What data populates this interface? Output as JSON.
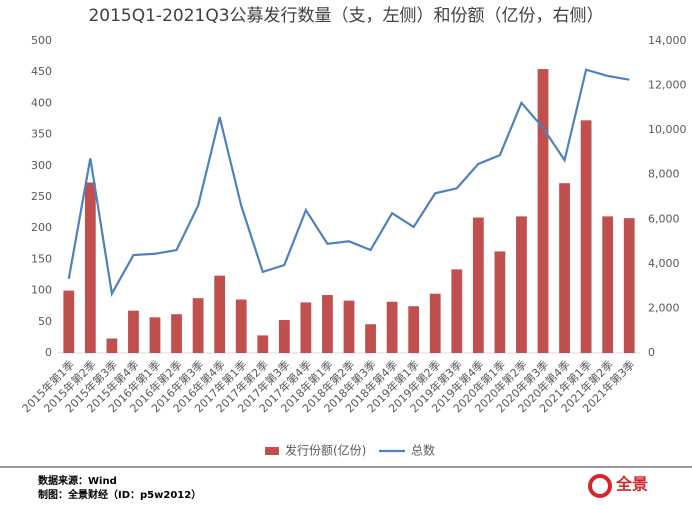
{
  "chart_data": {
    "type": "bar_line",
    "title": "2015Q1-2021Q3公募发行数量（支，左侧）和份额（亿份，右侧）",
    "categories": [
      "2015年第1季",
      "2015年第2季",
      "2015年第3季",
      "2015年第4季",
      "2016年第1季",
      "2016年第2季",
      "2016年第3季",
      "2016年第4季",
      "2017年第1季",
      "2017年第2季",
      "2017年第3季",
      "2017年第4季",
      "2018年第1季",
      "2018年第2季",
      "2018年第3季",
      "2018年第4季",
      "2019年第1季",
      "2019年第2季",
      "2019年第3季",
      "2019年第4季",
      "2020年第1季",
      "2020年第2季",
      "2020年第3季",
      "2020年第4季",
      "2021年第1季",
      "2021年第2季",
      "2021年第3季"
    ],
    "series": [
      {
        "name": "发行份额(亿份)",
        "type": "bar",
        "axis": "y2",
        "color": "#c0504d",
        "values": [
          2800,
          7650,
          650,
          1900,
          1600,
          1740,
          2460,
          3470,
          2400,
          790,
          1480,
          2270,
          2600,
          2350,
          1290,
          2300,
          2100,
          2660,
          3750,
          6080,
          4560,
          6130,
          12740,
          7620,
          10440,
          6130,
          6050
        ]
      },
      {
        "name": "总数",
        "type": "line",
        "color": "#4f81bd",
        "values": [
          119,
          312,
          95,
          157,
          159,
          165,
          236,
          378,
          236,
          130,
          141,
          229,
          175,
          179,
          165,
          224,
          202,
          256,
          264,
          303,
          317,
          401,
          361,
          309,
          454,
          444,
          438
        ]
      }
    ],
    "ylim": [
      0,
      500
    ],
    "yticks": [
      0,
      50,
      100,
      150,
      200,
      250,
      300,
      350,
      400,
      450,
      500
    ],
    "y2lim": [
      0,
      14000
    ],
    "y2ticks": [
      0,
      {
        "value": 2000,
        "label": "2,000"
      },
      {
        "value": 4000,
        "label": "4,000"
      },
      {
        "value": 6000,
        "label": "6,000"
      },
      {
        "value": 8000,
        "label": "8,000"
      },
      {
        "value": 10000,
        "label": "10,000"
      },
      {
        "value": 12000,
        "label": "12,000"
      },
      {
        "value": 14000,
        "label": "14,000"
      }
    ],
    "legend": "bottom"
  },
  "footer": {
    "source": "数据来源：Wind",
    "credit": "制图：全景财经（ID：p5w2012）",
    "logo": "全景"
  }
}
